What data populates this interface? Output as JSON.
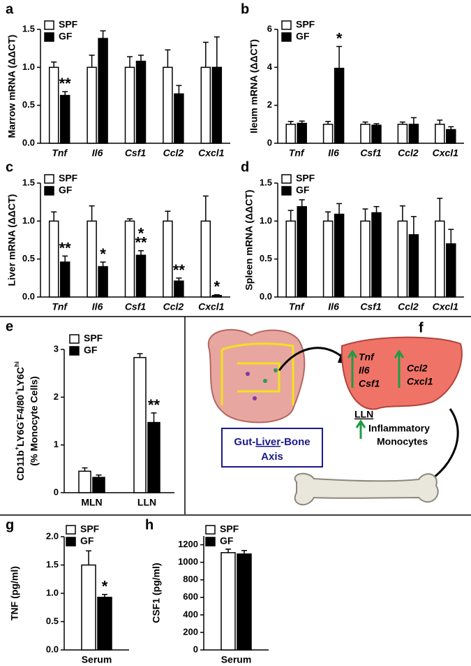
{
  "chart_data": [
    {
      "type": "bar",
      "panel": "a",
      "ylabel": "Marrow mRNA (ΔΔCT)",
      "category_style": "italic",
      "categories": [
        "Tnf",
        "Il6",
        "Csf1",
        "Ccl2",
        "Cxcl1"
      ],
      "series": [
        {
          "name": "SPF",
          "color": "#ffffff",
          "values": [
            1.0,
            1.0,
            1.0,
            1.0,
            1.0
          ],
          "errors": [
            0.07,
            0.16,
            0.14,
            0.23,
            0.33
          ]
        },
        {
          "name": "GF",
          "color": "#000000",
          "values": [
            0.63,
            1.38,
            1.08,
            0.65,
            1.0
          ],
          "errors": [
            0.05,
            0.1,
            0.08,
            0.11,
            0.4
          ],
          "significance": [
            [
              "**"
            ],
            null,
            null,
            null,
            null
          ]
        }
      ],
      "ylim": [
        0,
        1.5
      ],
      "yticks": [
        {
          "value": 0,
          "label": "0.0"
        },
        {
          "value": 0.5,
          "label": "0.5"
        },
        {
          "value": 1,
          "label": "1.0"
        },
        {
          "value": 1.5,
          "label": "1.5"
        }
      ]
    },
    {
      "type": "bar",
      "panel": "b",
      "ylabel": "Ileum mRNA (ΔΔCT)",
      "category_style": "italic",
      "categories": [
        "Tnf",
        "Il6",
        "Csf1",
        "Ccl2",
        "Cxcl1"
      ],
      "series": [
        {
          "name": "SPF",
          "color": "#ffffff",
          "values": [
            1.0,
            1.0,
            1.0,
            1.0,
            1.0
          ],
          "errors": [
            0.15,
            0.15,
            0.12,
            0.12,
            0.22
          ]
        },
        {
          "name": "GF",
          "color": "#000000",
          "values": [
            1.05,
            3.95,
            0.95,
            1.0,
            0.72
          ],
          "errors": [
            0.12,
            1.15,
            0.08,
            0.35,
            0.15
          ],
          "significance": [
            null,
            [
              "*"
            ],
            null,
            null,
            null
          ]
        }
      ],
      "ylim": [
        0,
        6
      ],
      "yticks": [
        0,
        2,
        4,
        6
      ]
    },
    {
      "type": "bar",
      "panel": "c",
      "ylabel": "Liver mRNA (ΔΔCT)",
      "category_style": "italic",
      "categories": [
        "Tnf",
        "Il6",
        "Csf1",
        "Ccl2",
        "Cxcl1"
      ],
      "series": [
        {
          "name": "SPF",
          "color": "#ffffff",
          "values": [
            1.0,
            1.0,
            1.0,
            1.0,
            1.0
          ],
          "errors": [
            0.12,
            0.2,
            0.03,
            0.13,
            0.33
          ]
        },
        {
          "name": "GF",
          "color": "#000000",
          "values": [
            0.46,
            0.4,
            0.55,
            0.21,
            0.02
          ],
          "errors": [
            0.08,
            0.06,
            0.06,
            0.04,
            0.01
          ],
          "significance": [
            [
              "**"
            ],
            [
              "*"
            ],
            [
              "**",
              "*"
            ],
            [
              "**"
            ],
            [
              "*"
            ]
          ]
        }
      ],
      "ylim": [
        0,
        1.5
      ],
      "yticks": [
        {
          "value": 0,
          "label": "0.0"
        },
        {
          "value": 0.5,
          "label": "0.5"
        },
        {
          "value": 1,
          "label": "1.0"
        },
        {
          "value": 1.5,
          "label": "1.5"
        }
      ]
    },
    {
      "type": "bar",
      "panel": "d",
      "ylabel": "Spleen mRNA (ΔΔCT)",
      "category_style": "italic",
      "categories": [
        "Tnf",
        "Il6",
        "Csf1",
        "Ccl2",
        "Cxcl1"
      ],
      "series": [
        {
          "name": "SPF",
          "color": "#ffffff",
          "values": [
            1.0,
            1.0,
            1.0,
            1.0,
            1.0
          ],
          "errors": [
            0.14,
            0.12,
            0.16,
            0.2,
            0.3
          ]
        },
        {
          "name": "GF",
          "color": "#000000",
          "values": [
            1.19,
            1.09,
            1.11,
            0.82,
            0.7
          ],
          "errors": [
            0.09,
            0.14,
            0.08,
            0.24,
            0.19
          ]
        }
      ],
      "ylim": [
        0,
        1.5
      ],
      "yticks": [
        {
          "value": 0,
          "label": "0.0"
        },
        {
          "value": 0.5,
          "label": "0.5"
        },
        {
          "value": 1,
          "label": "1.0"
        },
        {
          "value": 1.5,
          "label": "1.5"
        }
      ]
    },
    {
      "type": "bar",
      "panel": "e",
      "ylabel": [
        [
          {
            "text": "CD11b"
          },
          {
            "text": "+",
            "sup": true
          },
          {
            "text": "LY6G"
          },
          {
            "text": "-",
            "sup": true
          },
          {
            "text": "F4/80"
          },
          {
            "text": "+",
            "sup": true
          },
          {
            "text": "LY6C"
          },
          {
            "text": "hi",
            "sup": true
          }
        ],
        "(% Monocyte Cells)"
      ],
      "categories": [
        "MLN",
        "LLN"
      ],
      "series": [
        {
          "name": "SPF",
          "color": "#ffffff",
          "values": [
            0.45,
            2.83
          ],
          "errors": [
            0.07,
            0.08
          ]
        },
        {
          "name": "GF",
          "color": "#000000",
          "values": [
            0.32,
            1.47
          ],
          "errors": [
            0.05,
            0.2
          ],
          "significance": [
            null,
            [
              "**"
            ]
          ]
        }
      ],
      "ylim": [
        0,
        3
      ],
      "yticks": [
        0,
        1,
        2,
        3
      ]
    },
    {
      "type": "bar",
      "panel": "g",
      "ylabel": "TNF (pg/ml)",
      "categories": [
        "Serum"
      ],
      "series": [
        {
          "name": "SPF",
          "color": "#ffffff",
          "values": [
            1.5
          ],
          "errors": [
            0.25
          ]
        },
        {
          "name": "GF",
          "color": "#000000",
          "values": [
            0.93
          ],
          "errors": [
            0.05
          ],
          "significance": [
            [
              "*"
            ]
          ]
        }
      ],
      "ylim": [
        0,
        2
      ],
      "yticks": [
        {
          "value": 0,
          "label": "0.0"
        },
        {
          "value": 0.5,
          "label": "0.5"
        },
        {
          "value": 1,
          "label": "1.0"
        },
        {
          "value": 1.5,
          "label": "1.5"
        },
        {
          "value": 2,
          "label": "2.0"
        }
      ]
    },
    {
      "type": "bar",
      "panel": "h",
      "ylabel": "CSF1 (pg/ml)",
      "categories": [
        "Serum"
      ],
      "series": [
        {
          "name": "SPF",
          "color": "#ffffff",
          "values": [
            1110
          ],
          "errors": [
            40
          ]
        },
        {
          "name": "GF",
          "color": "#000000",
          "values": [
            1095
          ],
          "errors": [
            40
          ]
        }
      ],
      "ylim": [
        0,
        1300
      ],
      "yticks": [
        0,
        200,
        400,
        600,
        800,
        1000,
        1200
      ]
    }
  ],
  "diagram": {
    "panel": "f",
    "genes_left": [
      "Tnf",
      "Il6",
      "Csf1"
    ],
    "genes_right": [
      "Ccl2",
      "Cxcl1"
    ],
    "site": "LLN",
    "cells": [
      "Inflammatory",
      "Monocytes"
    ],
    "axis_title": [
      "Gut-",
      "Liver",
      "-Bone"
    ],
    "axis_subtitle": "Axis"
  }
}
